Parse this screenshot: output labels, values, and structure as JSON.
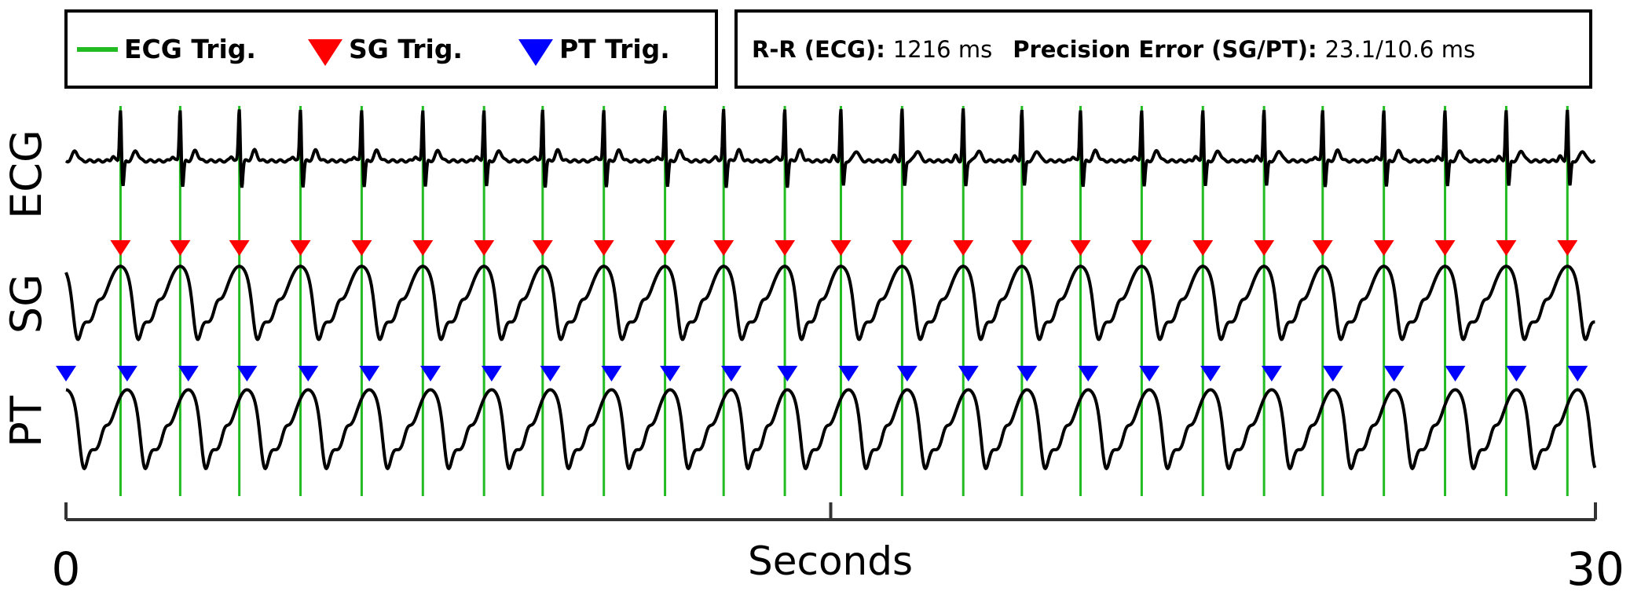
{
  "legend": {
    "ecg_label": "ECG Trig.",
    "sg_label": "SG Trig.",
    "pt_label": "PT Trig."
  },
  "stats": {
    "rr_label": "R-R (ECG):",
    "rr_value": "1216 ms",
    "precision_label": "Precision Error (SG/PT):",
    "precision_value": "23.1/10.6 ms"
  },
  "colors": {
    "ecg_trigger": "#22bb22",
    "sg_trigger": "#ff0000",
    "pt_trigger": "#0000ff",
    "signal": "#000000"
  },
  "chart_data": {
    "type": "line",
    "xlabel": "Seconds",
    "xlim": [
      0,
      30
    ],
    "xticks": [
      0,
      15,
      30
    ],
    "xtick_labels": [
      "0",
      "30"
    ],
    "traces": [
      "ECG",
      "SG",
      "PT"
    ],
    "ecg_trigger_times_s": [
      1.07,
      2.24,
      3.4,
      4.6,
      5.8,
      7.0,
      8.2,
      9.35,
      10.55,
      11.75,
      12.9,
      14.1,
      15.2,
      16.4,
      17.6,
      18.75,
      19.9,
      21.1,
      22.3,
      23.5,
      24.65,
      25.85,
      27.05,
      28.25,
      29.45
    ],
    "sg_trigger_times_s": [
      1.07,
      2.24,
      3.4,
      4.6,
      5.8,
      7.0,
      8.2,
      9.35,
      10.55,
      11.75,
      12.9,
      14.1,
      15.2,
      16.4,
      17.6,
      18.75,
      19.9,
      21.1,
      22.3,
      23.5,
      24.65,
      25.85,
      27.05,
      28.25,
      29.45
    ],
    "pt_trigger_times_s": [
      0.0,
      1.2,
      2.4,
      3.55,
      4.75,
      5.95,
      7.15,
      8.35,
      9.5,
      10.7,
      11.85,
      13.05,
      14.15,
      15.35,
      16.5,
      17.7,
      18.85,
      20.05,
      21.25,
      22.45,
      23.65,
      24.85,
      26.05,
      27.25,
      28.45,
      29.65
    ]
  }
}
